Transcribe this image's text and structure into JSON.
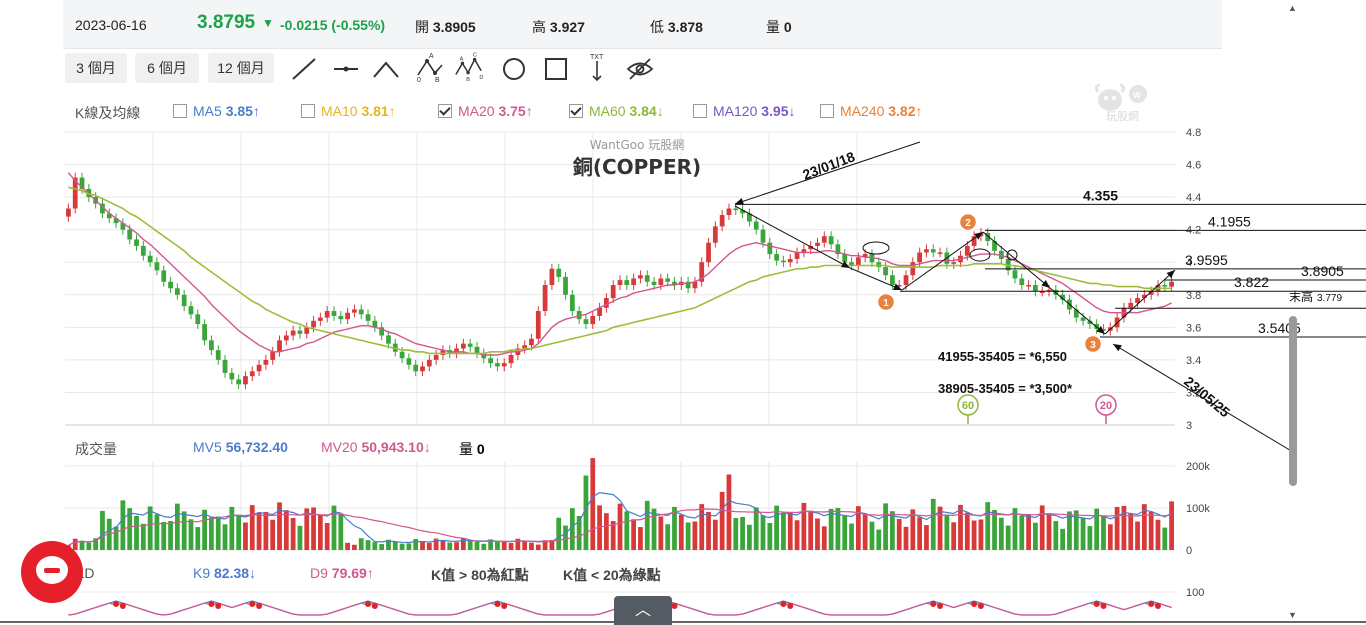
{
  "header": {
    "date": "2023-06-16",
    "price": "3.8795",
    "change": "-0.0215 (-0.55%)",
    "open_label": "開",
    "open": "3.8905",
    "high_label": "高",
    "high": "3.927",
    "low_label": "低",
    "low": "3.878",
    "vol_label": "量",
    "vol": "0"
  },
  "periods": [
    "3 個月",
    "6 個月",
    "12 個月"
  ],
  "tools": [
    "line-tool-icon",
    "horizontal-line-icon",
    "angle-tool-icon",
    "abc-wave-icon",
    "abcd-wave-icon",
    "circle-tool-icon",
    "rectangle-tool-icon",
    "text-tool-icon",
    "hide-drawings-icon"
  ],
  "tool_text": {
    "abc": "A",
    "abc0": "0",
    "abcB": "B",
    "txt": "TXT"
  },
  "ma_legend": {
    "title": "K線及均線",
    "items": [
      {
        "name": "MA5",
        "value": "3.85",
        "arrow": "↑",
        "checked": false,
        "color": "#4a7ccb"
      },
      {
        "name": "MA10",
        "value": "3.81",
        "arrow": "↑",
        "checked": false,
        "color": "#e6b422"
      },
      {
        "name": "MA20",
        "value": "3.75",
        "arrow": "↑",
        "checked": true,
        "color": "#d2578f"
      },
      {
        "name": "MA60",
        "value": "3.84",
        "arrow": "↓",
        "checked": true,
        "color": "#8fb73a"
      },
      {
        "name": "MA120",
        "value": "3.95",
        "arrow": "↓",
        "checked": false,
        "color": "#7a55c8"
      },
      {
        "name": "MA240",
        "value": "3.82",
        "arrow": "↑",
        "checked": false,
        "color": "#e8803a"
      }
    ]
  },
  "watermark": "WantGoo 玩股網",
  "logo_text": "玩股網",
  "chart_title": "銅(COPPER)",
  "colors": {
    "up": "#d83a3a",
    "down": "#3aa53a",
    "ma20": "#d2578f",
    "ma60": "#9cbe3c",
    "grid": "#e8e8e8"
  },
  "chart_data": [
    {
      "type": "candlestick",
      "title": "銅(COPPER)",
      "ylim": [
        3.0,
        4.8
      ],
      "yticks": [
        "4.8",
        "4.6",
        "4.4",
        "4.2",
        "4",
        "3.8",
        "3.6",
        "3.4",
        "3.2",
        "3"
      ],
      "series_close": [
        4.33,
        4.52,
        4.45,
        4.4,
        4.36,
        4.3,
        4.27,
        4.24,
        4.2,
        4.14,
        4.1,
        4.04,
        4.0,
        3.95,
        3.88,
        3.84,
        3.8,
        3.73,
        3.68,
        3.62,
        3.52,
        3.46,
        3.4,
        3.32,
        3.28,
        3.25,
        3.3,
        3.33,
        3.37,
        3.4,
        3.45,
        3.52,
        3.55,
        3.58,
        3.56,
        3.6,
        3.64,
        3.66,
        3.7,
        3.67,
        3.65,
        3.69,
        3.71,
        3.68,
        3.64,
        3.6,
        3.55,
        3.5,
        3.45,
        3.41,
        3.37,
        3.33,
        3.36,
        3.4,
        3.43,
        3.46,
        3.44,
        3.47,
        3.5,
        3.48,
        3.44,
        3.41,
        3.38,
        3.36,
        3.38,
        3.43,
        3.47,
        3.49,
        3.53,
        3.7,
        3.86,
        3.96,
        3.91,
        3.8,
        3.7,
        3.65,
        3.62,
        3.67,
        3.72,
        3.78,
        3.86,
        3.89,
        3.86,
        3.9,
        3.92,
        3.88,
        3.86,
        3.9,
        3.88,
        3.86,
        3.88,
        3.84,
        3.88,
        4.0,
        4.12,
        4.22,
        4.29,
        4.33,
        4.32,
        4.3,
        4.25,
        4.2,
        4.12,
        4.05,
        4.01,
        4.0,
        4.02,
        4.06,
        4.08,
        4.1,
        4.12,
        4.16,
        4.11,
        4.05,
        4.0,
        3.98,
        4.03,
        4.05,
        4.0,
        3.97,
        3.92,
        3.86,
        3.86,
        3.92,
        4.0,
        4.06,
        4.08,
        4.06,
        4.06,
        3.99,
        4.0,
        4.04,
        4.1,
        4.16,
        4.18,
        4.13,
        4.07,
        4.02,
        3.95,
        3.9,
        3.86,
        3.86,
        3.82,
        3.82,
        3.83,
        3.8,
        3.77,
        3.71,
        3.66,
        3.64,
        3.62,
        3.59,
        3.58,
        3.6,
        3.66,
        3.72,
        3.75,
        3.78,
        3.8,
        3.82,
        3.86,
        3.85,
        3.88
      ],
      "ma20": [
        4.55,
        4.5,
        4.46,
        4.42,
        4.38,
        4.34,
        4.3,
        4.27,
        4.24,
        4.21,
        4.18,
        4.14,
        4.11,
        4.07,
        4.03,
        3.99,
        3.95,
        3.91,
        3.87,
        3.83,
        3.79,
        3.74,
        3.7,
        3.66,
        3.62,
        3.58,
        3.55,
        3.52,
        3.49,
        3.47,
        3.45,
        3.45,
        3.46,
        3.47,
        3.48,
        3.5,
        3.51,
        3.53,
        3.55,
        3.57,
        3.58,
        3.59,
        3.6,
        3.61,
        3.61,
        3.6,
        3.59,
        3.57,
        3.56,
        3.54,
        3.52,
        3.5,
        3.49,
        3.48,
        3.47,
        3.46,
        3.45,
        3.45,
        3.45,
        3.44,
        3.44,
        3.43,
        3.43,
        3.43,
        3.44,
        3.45,
        3.45,
        3.46,
        3.47,
        3.5,
        3.55,
        3.6,
        3.63,
        3.65,
        3.66,
        3.67,
        3.68,
        3.7,
        3.72,
        3.74,
        3.76,
        3.78,
        3.79,
        3.81,
        3.82,
        3.83,
        3.84,
        3.85,
        3.86,
        3.86,
        3.87,
        3.87,
        3.88,
        3.9,
        3.93,
        3.97,
        4.01,
        4.05,
        4.08,
        4.1,
        4.11,
        4.12,
        4.11,
        4.1,
        4.09,
        4.08,
        4.07,
        4.06,
        4.06,
        4.06,
        4.06,
        4.07,
        4.07,
        4.06,
        4.05,
        4.04,
        4.04,
        4.03,
        4.03,
        4.02,
        4.01,
        3.99,
        3.98,
        3.98,
        3.98,
        3.99,
        4.0,
        4.01,
        4.01,
        4.01,
        4.01,
        4.02,
        4.03,
        4.04,
        4.05,
        4.05,
        4.05,
        4.04,
        4.03,
        4.01,
        3.99,
        3.97,
        3.95,
        3.93,
        3.91,
        3.89,
        3.87,
        3.84,
        3.81,
        3.78,
        3.75,
        3.72,
        3.7,
        3.69,
        3.69,
        3.69,
        3.69,
        3.69,
        3.7,
        3.71,
        3.72,
        3.73,
        3.75
      ],
      "ma60": [
        4.46,
        4.45,
        4.44,
        4.42,
        4.41,
        4.39,
        4.37,
        4.35,
        4.33,
        4.3,
        4.28,
        4.25,
        4.22,
        4.19,
        4.16,
        4.13,
        4.1,
        4.07,
        4.03,
        4.0,
        3.97,
        3.94,
        3.91,
        3.88,
        3.85,
        3.82,
        3.79,
        3.76,
        3.74,
        3.71,
        3.69,
        3.67,
        3.65,
        3.63,
        3.62,
        3.6,
        3.59,
        3.58,
        3.57,
        3.56,
        3.55,
        3.54,
        3.53,
        3.52,
        3.51,
        3.5,
        3.49,
        3.48,
        3.47,
        3.46,
        3.46,
        3.45,
        3.45,
        3.44,
        3.44,
        3.44,
        3.44,
        3.44,
        3.44,
        3.44,
        3.44,
        3.44,
        3.45,
        3.45,
        3.45,
        3.46,
        3.46,
        3.47,
        3.47,
        3.48,
        3.49,
        3.5,
        3.51,
        3.52,
        3.53,
        3.54,
        3.55,
        3.56,
        3.57,
        3.58,
        3.6,
        3.61,
        3.62,
        3.63,
        3.64,
        3.65,
        3.66,
        3.67,
        3.68,
        3.69,
        3.7,
        3.71,
        3.72,
        3.74,
        3.76,
        3.78,
        3.8,
        3.82,
        3.84,
        3.86,
        3.88,
        3.89,
        3.91,
        3.92,
        3.93,
        3.94,
        3.95,
        3.96,
        3.96,
        3.97,
        3.97,
        3.98,
        3.98,
        3.98,
        3.98,
        3.98,
        3.98,
        3.98,
        3.98,
        3.98,
        3.98,
        3.97,
        3.97,
        3.97,
        3.97,
        3.97,
        3.97,
        3.97,
        3.98,
        3.98,
        3.98,
        3.98,
        3.98,
        3.99,
        3.99,
        3.99,
        3.99,
        3.99,
        3.98,
        3.98,
        3.97,
        3.96,
        3.95,
        3.94,
        3.93,
        3.92,
        3.91,
        3.9,
        3.89,
        3.88,
        3.87,
        3.87,
        3.86,
        3.86,
        3.85,
        3.85,
        3.85,
        3.85,
        3.84,
        3.84,
        3.84,
        3.84,
        3.84
      ]
    },
    {
      "type": "bar",
      "title": "成交量",
      "legend": [
        {
          "name": "MV5",
          "value": "56,732.40",
          "arrow": "",
          "color": "#4a7ccb"
        },
        {
          "name": "MV20",
          "value": "50,943.10",
          "arrow": "↓",
          "color": "#d2578f"
        },
        {
          "name": "量",
          "value": "0",
          "arrow": "",
          "color": "#222"
        }
      ],
      "yticks": [
        "200k",
        "100k",
        "0"
      ],
      "ylim": [
        0,
        200000
      ]
    },
    {
      "type": "line",
      "title": "KD",
      "legend": [
        {
          "name": "K9",
          "value": "82.38",
          "arrow": "↓",
          "color": "#4a7ccb"
        },
        {
          "name": "D9",
          "value": "79.69",
          "arrow": "↑",
          "color": "#d2578f"
        }
      ],
      "notes": [
        "K值 > 80為紅點",
        "K值 < 20為綠點"
      ],
      "yticks": [
        "100"
      ]
    }
  ],
  "annotations": {
    "date_top": "23/01/18",
    "date_bottom": "23/05/25",
    "levels": [
      "4.355",
      "4.1955",
      "3.9595",
      "3.8905",
      "3.822",
      "3.5405"
    ],
    "level_values": [
      4.355,
      4.1955,
      3.9595,
      3.8905,
      3.822,
      3.5405
    ],
    "mid_high_label": "末高",
    "mid_high": "3.779",
    "wave_labels": [
      "1",
      "2",
      "3"
    ],
    "calc1": "41955-35405 = *6,550",
    "calc2": "38905-35405 = *3,500*",
    "badge60": "60",
    "badge20": "20"
  }
}
